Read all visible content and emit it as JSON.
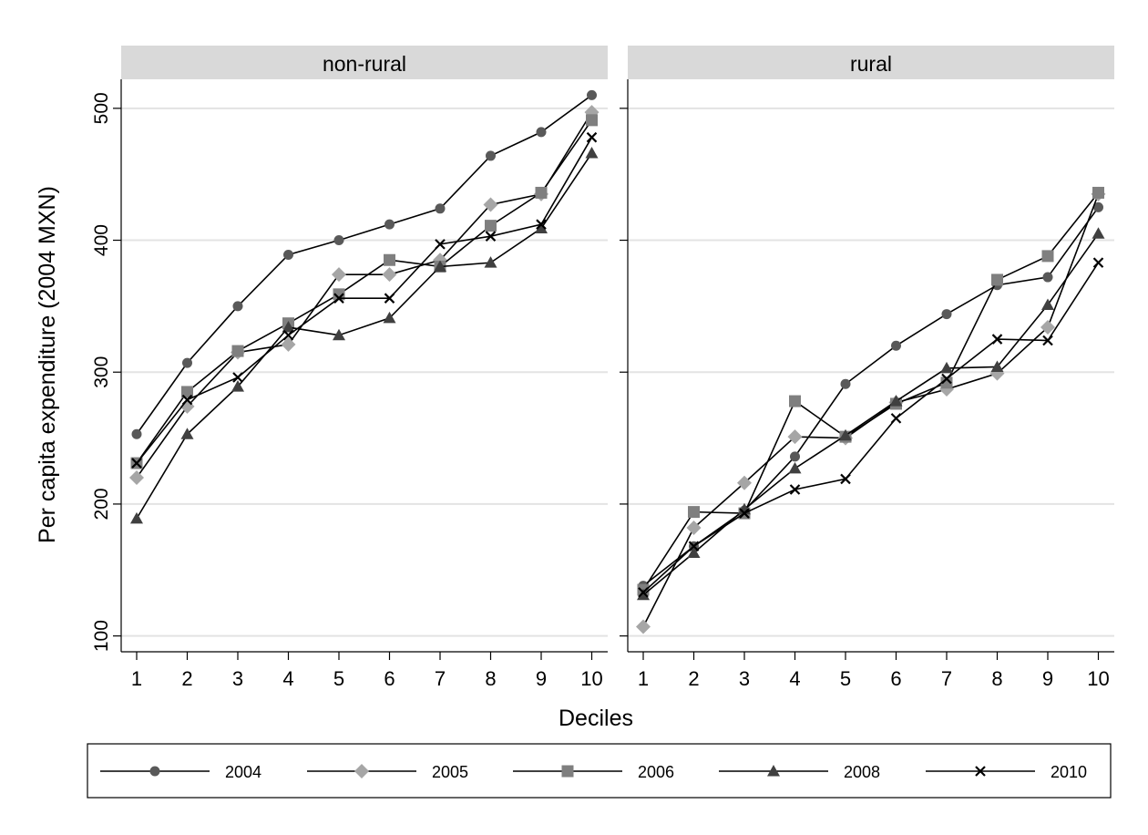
{
  "chart_data": {
    "type": "line",
    "ylabel": "Per capita expenditure (2004 MXN)",
    "xlabel": "Deciles",
    "x": [
      1,
      2,
      3,
      4,
      5,
      6,
      7,
      8,
      9,
      10
    ],
    "ylim": [
      88,
      522
    ],
    "yticks": [
      100,
      200,
      300,
      400,
      500
    ],
    "grid": true,
    "legend_position": "bottom",
    "series_styles": [
      {
        "name": "2004",
        "marker": "circle",
        "color": "#595959"
      },
      {
        "name": "2005",
        "marker": "diamond",
        "color": "#a6a6a6"
      },
      {
        "name": "2006",
        "marker": "square",
        "color": "#7f7f7f"
      },
      {
        "name": "2008",
        "marker": "triangle",
        "color": "#404040"
      },
      {
        "name": "2010",
        "marker": "x",
        "color": "#000000"
      }
    ],
    "panels": [
      {
        "title": "non-rural",
        "series": [
          {
            "name": "2004",
            "values": [
              253,
              307,
              350,
              389,
              400,
              412,
              424,
              464,
              482,
              510
            ]
          },
          {
            "name": "2005",
            "values": [
              220,
              274,
              315,
              321,
              374,
              374,
              385,
              427,
              435,
              497
            ]
          },
          {
            "name": "2006",
            "values": [
              231,
              285,
              316,
              337,
              359,
              385,
              380,
              411,
              436,
              491
            ]
          },
          {
            "name": "2008",
            "values": [
              189,
              253,
              289,
              334,
              328,
              341,
              380,
              383,
              409,
              466
            ]
          },
          {
            "name": "2010",
            "values": [
              231,
              279,
              296,
              328,
              356,
              356,
              397,
              403,
              412,
              478
            ]
          }
        ]
      },
      {
        "title": "rural",
        "series": [
          {
            "name": "2004",
            "values": [
              138,
              168,
              195,
              236,
              291,
              320,
              344,
              366,
              372,
              425
            ]
          },
          {
            "name": "2005",
            "values": [
              107,
              182,
              216,
              251,
              250,
              277,
              287,
              299,
              334,
              435
            ]
          },
          {
            "name": "2006",
            "values": [
              135,
              194,
              193,
              278,
              251,
              276,
              292,
              370,
              388,
              436
            ]
          },
          {
            "name": "2008",
            "values": [
              131,
              163,
              196,
              227,
              252,
              278,
              303,
              304,
              351,
              405
            ]
          },
          {
            "name": "2010",
            "values": [
              133,
              168,
              193,
              211,
              219,
              265,
              295,
              325,
              324,
              383
            ]
          }
        ]
      }
    ]
  }
}
